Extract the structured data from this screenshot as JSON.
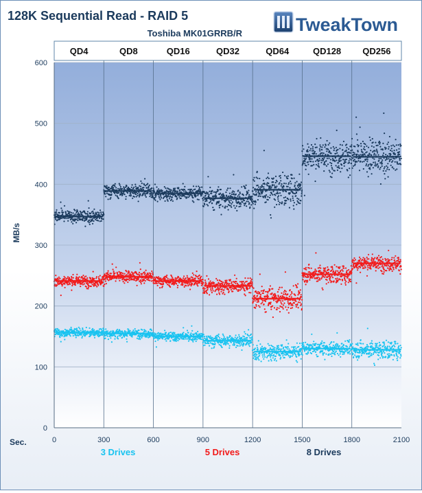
{
  "chart_data": {
    "type": "scatter",
    "title": "128K Sequential Read - RAID 5",
    "subtitle": "Toshiba MK01GRRB/R",
    "logo_text": "TweakTown",
    "ylabel": "MB/s",
    "xlabel": "Sec.",
    "ylim": [
      0,
      600
    ],
    "xlim": [
      0,
      2100
    ],
    "y_ticks": [
      "0",
      "100",
      "200",
      "300",
      "400",
      "500",
      "600"
    ],
    "x_ticks": [
      "0",
      "300",
      "600",
      "900",
      "1200",
      "1500",
      "1800",
      "2100"
    ],
    "grid": true,
    "legend_position": "bottom",
    "segments": [
      {
        "label": "QD4",
        "start": 0,
        "end": 300
      },
      {
        "label": "QD8",
        "start": 300,
        "end": 600
      },
      {
        "label": "QD16",
        "start": 600,
        "end": 900
      },
      {
        "label": "QD32",
        "start": 900,
        "end": 1200
      },
      {
        "label": "QD64",
        "start": 1200,
        "end": 1500
      },
      {
        "label": "QD128",
        "start": 1500,
        "end": 1800
      },
      {
        "label": "QD256",
        "start": 1800,
        "end": 2100
      }
    ],
    "series": [
      {
        "name": "3 Drives",
        "color": "#19c3f0",
        "segment_means": [
          156,
          155,
          150,
          143,
          125,
          130,
          128
        ],
        "segment_spreads": [
          6,
          6,
          6,
          9,
          12,
          10,
          12
        ]
      },
      {
        "name": "5 Drives",
        "color": "#f21a1a",
        "segment_means": [
          241,
          248,
          241,
          233,
          212,
          252,
          270
        ],
        "segment_spreads": [
          8,
          8,
          8,
          11,
          17,
          12,
          11
        ]
      },
      {
        "name": "8 Drives",
        "color": "#1b3a5c",
        "segment_means": [
          347,
          389,
          385,
          377,
          391,
          446,
          445
        ],
        "segment_spreads": [
          9,
          10,
          10,
          15,
          22,
          22,
          25
        ]
      }
    ]
  },
  "colors": {
    "plot_top": "#9ab4dc",
    "plot_bottom": "#ffffff",
    "title": "#1b3a5c",
    "axis_text": "#1b3a5c"
  }
}
